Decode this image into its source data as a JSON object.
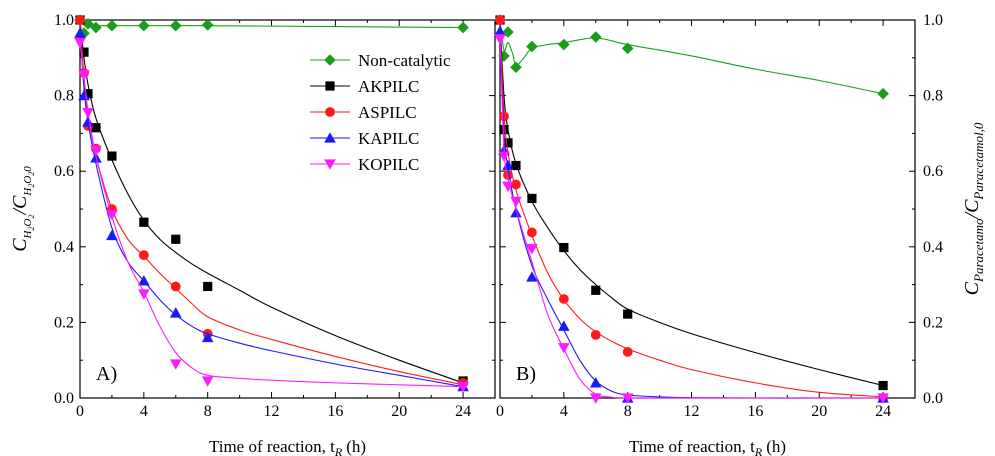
{
  "chart_data": [
    {
      "panel": "A)",
      "type": "scatter",
      "xlabel": "Time of reaction, t",
      "xlabel_sub": "R",
      "xlabel_unit": "(h)",
      "ylabel_main": "C",
      "ylabel_sub1": "H",
      "ylabel_sub1b": "2",
      "ylabel_sub1c": "O",
      "ylabel_sub1d": "2",
      "ylabel_slash": "/C",
      "ylabel_sub2": "H",
      "ylabel_sub2b": "2",
      "ylabel_sub2c": "O",
      "ylabel_sub2d": "2",
      "ylabel_sub2e": "0",
      "xlim": [
        0,
        26
      ],
      "ylim": [
        0,
        1.0
      ],
      "xticks": [
        "0",
        "4",
        "8",
        "12",
        "16",
        "20",
        "24"
      ],
      "yticks": [
        "0.0",
        "0.2",
        "0.4",
        "0.6",
        "0.8",
        "1.0"
      ],
      "legend_position": "top-center",
      "series": [
        {
          "name": "Non-catalytic",
          "color": "#1a9e1a",
          "marker": "diamond",
          "x": [
            0,
            0.25,
            0.5,
            1,
            2,
            4,
            6,
            8,
            24
          ],
          "y": [
            1.0,
            0.965,
            0.99,
            0.98,
            0.985,
            0.985,
            0.985,
            0.987,
            0.98
          ],
          "fit_x": [
            0,
            0.25,
            0.5,
            1,
            2,
            4,
            6,
            8,
            24
          ],
          "fit_y": [
            1.0,
            0.99,
            0.985,
            0.985,
            0.985,
            0.985,
            0.985,
            0.985,
            0.98
          ]
        },
        {
          "name": "AKPILC",
          "color": "#000000",
          "marker": "square",
          "x": [
            0,
            0.25,
            0.5,
            1,
            2,
            4,
            6,
            8,
            24
          ],
          "y": [
            1.0,
            0.915,
            0.805,
            0.715,
            0.64,
            0.465,
            0.42,
            0.295,
            0.045
          ],
          "fit_x": [
            0,
            0.25,
            0.5,
            1,
            2,
            3,
            4,
            5,
            6,
            7,
            8,
            10,
            12,
            16,
            20,
            24
          ],
          "fit_y": [
            1.0,
            0.9,
            0.83,
            0.74,
            0.63,
            0.54,
            0.47,
            0.42,
            0.385,
            0.355,
            0.33,
            0.285,
            0.24,
            0.165,
            0.1,
            0.04
          ]
        },
        {
          "name": "ASPILC",
          "color": "#ff1a1a",
          "marker": "circle",
          "x": [
            0,
            0.25,
            0.5,
            1,
            2,
            4,
            6,
            8,
            24
          ],
          "y": [
            1.0,
            0.86,
            0.72,
            0.66,
            0.5,
            0.378,
            0.295,
            0.17,
            0.04
          ],
          "fit_x": [
            0,
            0.25,
            0.5,
            1,
            2,
            3,
            4,
            5,
            6,
            7,
            8,
            10,
            12,
            16,
            20,
            24
          ],
          "fit_y": [
            1.0,
            0.85,
            0.75,
            0.64,
            0.5,
            0.42,
            0.375,
            0.33,
            0.29,
            0.25,
            0.215,
            0.18,
            0.155,
            0.11,
            0.07,
            0.035
          ]
        },
        {
          "name": "KAPILC",
          "color": "#1a1aff",
          "marker": "triangle-up",
          "x": [
            0,
            0.25,
            0.5,
            1,
            2,
            4,
            6,
            8,
            24
          ],
          "y": [
            0.965,
            0.8,
            0.73,
            0.635,
            0.43,
            0.31,
            0.225,
            0.16,
            0.03
          ],
          "fit_x": [
            0,
            0.25,
            0.5,
            1,
            2,
            3,
            4,
            5,
            6,
            7,
            8,
            10,
            12,
            16,
            20,
            24
          ],
          "fit_y": [
            0.97,
            0.82,
            0.73,
            0.62,
            0.45,
            0.36,
            0.31,
            0.26,
            0.22,
            0.19,
            0.17,
            0.145,
            0.125,
            0.09,
            0.06,
            0.03
          ]
        },
        {
          "name": "KOPILC",
          "color": "#ff1aff",
          "marker": "triangle-down",
          "x": [
            0,
            0.25,
            0.5,
            1,
            2,
            4,
            6,
            8,
            24
          ],
          "y": [
            0.94,
            0.855,
            0.755,
            0.655,
            0.485,
            0.275,
            0.09,
            0.045,
            0.03
          ],
          "fit_x": [
            0,
            0.25,
            0.5,
            1,
            2,
            3,
            4,
            5,
            6,
            7,
            8,
            10,
            12,
            16,
            20,
            24
          ],
          "fit_y": [
            0.94,
            0.85,
            0.76,
            0.64,
            0.48,
            0.36,
            0.28,
            0.19,
            0.12,
            0.08,
            0.06,
            0.052,
            0.047,
            0.04,
            0.035,
            0.03
          ]
        }
      ]
    },
    {
      "panel": "B)",
      "type": "scatter",
      "xlabel": "Time of reaction, t",
      "xlabel_sub": "R",
      "xlabel_unit": "(h)",
      "ylabel_main": "C",
      "ylabel_sub1": "Paracetamo",
      "ylabel_slash": "/C",
      "ylabel_sub2": "Paracetamol,0",
      "xlim": [
        0,
        26
      ],
      "ylim": [
        0,
        1.0
      ],
      "xticks": [
        "0",
        "4",
        "8",
        "12",
        "16",
        "20",
        "24"
      ],
      "yticks": [
        "0.0",
        "0.2",
        "0.4",
        "0.6",
        "0.8",
        "1.0"
      ],
      "series": [
        {
          "name": "Non-catalytic",
          "color": "#1a9e1a",
          "marker": "diamond",
          "x": [
            0,
            0.25,
            0.5,
            1,
            2,
            4,
            6,
            8,
            24
          ],
          "y": [
            1.0,
            0.905,
            0.968,
            0.875,
            0.93,
            0.935,
            0.955,
            0.925,
            0.805
          ],
          "fit_x": [
            0,
            0.25,
            0.5,
            0.8,
            1,
            1.5,
            2,
            3,
            4,
            5,
            6,
            7,
            8,
            12,
            16,
            20,
            24
          ],
          "fit_y": [
            1.0,
            0.92,
            0.94,
            0.91,
            0.88,
            0.9,
            0.925,
            0.935,
            0.94,
            0.948,
            0.953,
            0.945,
            0.935,
            0.905,
            0.87,
            0.84,
            0.805
          ]
        },
        {
          "name": "AKPILC",
          "color": "#000000",
          "marker": "square",
          "x": [
            0,
            0.25,
            0.5,
            1,
            2,
            4,
            6,
            8,
            24
          ],
          "y": [
            1.0,
            0.71,
            0.675,
            0.615,
            0.528,
            0.398,
            0.285,
            0.222,
            0.033
          ],
          "fit_x": [
            0,
            0.25,
            0.5,
            1,
            2,
            3,
            4,
            5,
            6,
            7,
            8,
            10,
            12,
            16,
            20,
            24
          ],
          "fit_y": [
            1.0,
            0.8,
            0.71,
            0.62,
            0.52,
            0.45,
            0.39,
            0.34,
            0.3,
            0.265,
            0.235,
            0.2,
            0.17,
            0.12,
            0.075,
            0.033
          ]
        },
        {
          "name": "ASPILC",
          "color": "#ff1a1a",
          "marker": "circle",
          "x": [
            0,
            0.25,
            0.5,
            1,
            2,
            4,
            6,
            8,
            24
          ],
          "y": [
            1.0,
            0.745,
            0.59,
            0.565,
            0.438,
            0.262,
            0.167,
            0.122,
            0.0
          ],
          "fit_x": [
            0,
            0.25,
            0.5,
            1,
            2,
            3,
            4,
            5,
            6,
            7,
            8,
            10,
            12,
            16,
            20,
            24
          ],
          "fit_y": [
            1.0,
            0.75,
            0.65,
            0.55,
            0.43,
            0.33,
            0.26,
            0.21,
            0.175,
            0.15,
            0.13,
            0.1,
            0.075,
            0.04,
            0.015,
            0.003
          ]
        },
        {
          "name": "KAPILC",
          "color": "#1a1aff",
          "marker": "triangle-up",
          "x": [
            0,
            0.25,
            0.5,
            1,
            2,
            4,
            6,
            8,
            24
          ],
          "y": [
            0.97,
            0.655,
            0.615,
            0.49,
            0.32,
            0.19,
            0.04,
            0.0,
            0.0
          ],
          "fit_x": [
            0,
            0.25,
            0.5,
            1,
            2,
            3,
            4,
            5,
            6,
            7,
            8,
            10,
            12,
            16,
            20,
            24
          ],
          "fit_y": [
            0.97,
            0.7,
            0.61,
            0.5,
            0.35,
            0.26,
            0.18,
            0.1,
            0.045,
            0.018,
            0.008,
            0.003,
            0.001,
            0.0,
            0.0,
            0.0
          ]
        },
        {
          "name": "KOPILC",
          "color": "#ff1aff",
          "marker": "triangle-down",
          "x": [
            0,
            0.25,
            0.5,
            1,
            2,
            4,
            6,
            8,
            24
          ],
          "y": [
            0.95,
            0.64,
            0.56,
            0.52,
            0.395,
            0.133,
            0.0,
            0.0,
            0.0
          ],
          "fit_x": [
            0,
            0.25,
            0.5,
            1,
            2,
            3,
            4,
            5,
            6,
            7,
            8,
            10,
            12,
            16,
            20,
            24
          ],
          "fit_y": [
            0.95,
            0.66,
            0.58,
            0.5,
            0.36,
            0.22,
            0.13,
            0.05,
            0.01,
            0.002,
            0.0,
            0.0,
            0.0,
            0.0,
            0.0,
            0.0
          ]
        }
      ]
    }
  ]
}
